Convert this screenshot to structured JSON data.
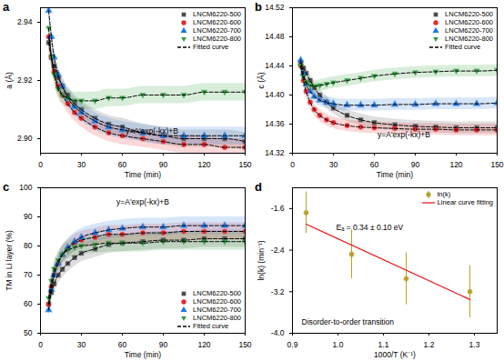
{
  "chart_data": [
    {
      "type": "scatter",
      "panel_label": "a",
      "x_label": "Time (min)",
      "y_label": "a (Å)",
      "xlim": [
        0,
        150
      ],
      "xticks": [
        0,
        30,
        60,
        90,
        120,
        150
      ],
      "ylim": [
        2.895,
        2.945
      ],
      "yticks": [
        {
          "value": 2.9,
          "label": "2.90"
        },
        2.92,
        2.94
      ],
      "legend": "top-right",
      "annotations": [
        "y=A'exp(-kx)+B"
      ],
      "fitted_curve": {
        "name": "Fitted curve",
        "color": "#000000",
        "line_style": "dashed"
      },
      "x": [
        6,
        8,
        10,
        13,
        16,
        20,
        25,
        30,
        40,
        50,
        60,
        75,
        90,
        105,
        120,
        135,
        150
      ],
      "series": [
        {
          "name": "LNCM6220-500",
          "color": "#4d4d4d",
          "marker": "square",
          "error": 0.003,
          "values": [
            2.933,
            2.928,
            2.925,
            2.921,
            2.918,
            2.915,
            2.912,
            2.91,
            2.907,
            2.905,
            2.904,
            2.902,
            2.901,
            2.9,
            2.9,
            2.9,
            2.899
          ]
        },
        {
          "name": "LNCM6220-600",
          "color": "#e8262a",
          "marker": "circle",
          "error": 0.003,
          "values": [
            2.935,
            2.928,
            2.923,
            2.918,
            2.915,
            2.912,
            2.909,
            2.907,
            2.904,
            2.902,
            2.901,
            2.9,
            2.899,
            2.898,
            2.898,
            2.897,
            2.897
          ]
        },
        {
          "name": "LNCM6220-700",
          "color": "#1f77e0",
          "marker": "triangle",
          "error": 0.003,
          "values": [
            2.944,
            2.935,
            2.928,
            2.922,
            2.918,
            2.914,
            2.911,
            2.909,
            2.906,
            2.904,
            2.903,
            2.902,
            2.901,
            2.901,
            2.901,
            2.901,
            2.901
          ]
        },
        {
          "name": "LNCM6220-800",
          "color": "#2a9a3a",
          "marker": "triangle-down",
          "error": 0.003,
          "values": [
            2.938,
            2.928,
            2.922,
            2.917,
            2.915,
            2.914,
            2.913,
            2.913,
            2.913,
            2.914,
            2.914,
            2.915,
            2.915,
            2.915,
            2.916,
            2.916,
            2.916
          ]
        }
      ]
    },
    {
      "type": "scatter",
      "panel_label": "b",
      "x_label": "Time (min)",
      "y_label": "c (Å)",
      "xlim": [
        0,
        150
      ],
      "xticks": [
        0,
        30,
        60,
        90,
        120,
        150
      ],
      "ylim": [
        14.32,
        14.52
      ],
      "yticks": [
        14.32,
        14.36,
        {
          "value": 14.4,
          "label": "14.40"
        },
        14.44,
        14.48,
        14.52
      ],
      "legend": "top-right",
      "annotations": [
        "y=A'exp(-kx)+B"
      ],
      "fitted_curve": {
        "name": "Fitted curve",
        "color": "#000000",
        "line_style": "dashed"
      },
      "x": [
        6,
        8,
        10,
        13,
        16,
        20,
        25,
        30,
        40,
        50,
        60,
        75,
        90,
        105,
        120,
        135,
        150
      ],
      "series": [
        {
          "name": "LNCM6220-500",
          "color": "#4d4d4d",
          "marker": "square",
          "error": 0.008,
          "values": [
            14.445,
            14.437,
            14.43,
            14.42,
            14.41,
            14.4,
            14.39,
            14.382,
            14.372,
            14.366,
            14.362,
            14.359,
            14.357,
            14.356,
            14.355,
            14.355,
            14.355
          ]
        },
        {
          "name": "LNCM6220-600",
          "color": "#e8262a",
          "marker": "circle",
          "error": 0.008,
          "values": [
            14.44,
            14.42,
            14.405,
            14.39,
            14.38,
            14.372,
            14.366,
            14.362,
            14.358,
            14.356,
            14.355,
            14.354,
            14.353,
            14.353,
            14.352,
            14.352,
            14.352
          ]
        },
        {
          "name": "LNCM6220-700",
          "color": "#1f77e0",
          "marker": "triangle",
          "error": 0.008,
          "values": [
            14.448,
            14.43,
            14.415,
            14.405,
            14.398,
            14.393,
            14.39,
            14.388,
            14.386,
            14.386,
            14.386,
            14.387,
            14.387,
            14.388,
            14.388,
            14.388,
            14.389
          ]
        },
        {
          "name": "LNCM6220-800",
          "color": "#2a9a3a",
          "marker": "triangle-down",
          "error": 0.008,
          "values": [
            14.44,
            14.425,
            14.418,
            14.413,
            14.412,
            14.413,
            14.415,
            14.417,
            14.42,
            14.423,
            14.426,
            14.429,
            14.431,
            14.432,
            14.433,
            14.433,
            14.434
          ]
        }
      ]
    },
    {
      "type": "scatter",
      "panel_label": "c",
      "x_label": "Time (min)",
      "y_label": "TM in Li layer (%)",
      "xlim": [
        0,
        150
      ],
      "xticks": [
        0,
        30,
        60,
        90,
        120,
        150
      ],
      "ylim": [
        50,
        100
      ],
      "yticks": [
        50,
        60,
        70,
        80,
        90,
        100
      ],
      "legend": "bottom-right",
      "annotations": [
        "y=A'exp(-kx)+B"
      ],
      "fitted_curve": {
        "name": "Fitted curve",
        "color": "#000000",
        "line_style": "dashed"
      },
      "x": [
        6,
        8,
        10,
        13,
        16,
        20,
        25,
        30,
        40,
        50,
        60,
        75,
        90,
        105,
        120,
        135,
        150
      ],
      "series": [
        {
          "name": "LNCM6220-500",
          "color": "#4d4d4d",
          "marker": "square",
          "error": 3,
          "values": [
            60,
            64,
            67,
            70,
            72,
            74,
            76,
            77.5,
            79,
            80.5,
            81,
            81.5,
            82,
            82,
            82.5,
            82.5,
            82.5
          ]
        },
        {
          "name": "LNCM6220-600",
          "color": "#e8262a",
          "marker": "circle",
          "error": 3,
          "values": [
            60,
            66,
            70,
            74,
            77,
            79,
            81,
            82,
            83,
            84,
            84,
            84.5,
            84.5,
            85,
            85,
            85,
            85
          ]
        },
        {
          "name": "LNCM6220-700",
          "color": "#1f77e0",
          "marker": "triangle",
          "error": 3,
          "values": [
            58,
            65,
            70,
            74,
            77,
            79.5,
            81.5,
            83,
            84.5,
            85.5,
            86,
            86.5,
            86.5,
            87,
            87,
            87,
            87
          ]
        },
        {
          "name": "LNCM6220-800",
          "color": "#2a9a3a",
          "marker": "triangle-down",
          "error": 3,
          "values": [
            62,
            68,
            72,
            75,
            77,
            78.5,
            79.5,
            80,
            80.5,
            81,
            81,
            81,
            81.5,
            81.5,
            81.5,
            81.5,
            81.5
          ]
        }
      ]
    },
    {
      "type": "scatter",
      "panel_label": "d",
      "x_label": "1000/T (K⁻¹)",
      "y_label": "ln(k) (min⁻¹)",
      "xlim": [
        0.9,
        1.35
      ],
      "xticks": [
        0.9,
        {
          "value": 1,
          "label": "1.0"
        },
        1.1,
        1.2,
        1.3
      ],
      "ylim": [
        -4,
        -1.2
      ],
      "yticks": [
        {
          "value": -4,
          "label": "-4.0"
        },
        -3.2,
        -2.4,
        -1.6
      ],
      "legend": "top-right",
      "annotations": [
        "Eₐ = 0.34 ± 0.10 eV",
        "Disorder-to-order transition"
      ],
      "series": [
        {
          "name": "ln(k)",
          "color": "#b8a12a",
          "marker": "circle",
          "x": [
            0.93,
            1.03,
            1.15,
            1.29
          ],
          "values": [
            -1.68,
            -2.48,
            -2.95,
            -3.2
          ],
          "errors": [
            0.4,
            0.47,
            0.5,
            0.5
          ]
        },
        {
          "name": "Linear curve fitting",
          "type": "line",
          "color": "#e8191b",
          "line_style": "solid",
          "x": [
            0.93,
            1.29
          ],
          "values": [
            -1.9,
            -3.35
          ]
        }
      ]
    }
  ]
}
